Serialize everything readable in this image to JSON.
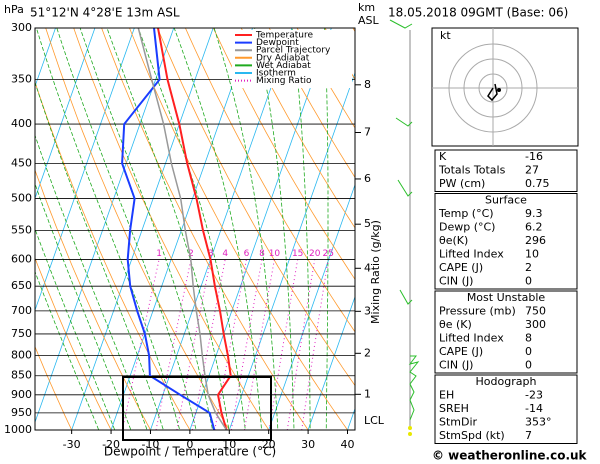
{
  "chart_data": {
    "type": "skew-t",
    "title_left": "51°12'N 4°28'E 13m ASL",
    "title_right": "18.05.2018 09GMT (Base: 06)",
    "y_label": "hPa",
    "y2_label": [
      "km",
      "ASL"
    ],
    "x_label": "Dewpoint / Temperature (°C)",
    "xlim": [
      -39.3,
      41.9
    ],
    "xticks": [
      -30,
      -20,
      -10,
      0,
      10,
      20,
      30,
      40
    ],
    "ylim": [
      1000,
      300
    ],
    "yticks": [
      300,
      350,
      400,
      450,
      500,
      550,
      600,
      650,
      700,
      750,
      800,
      850,
      900,
      950,
      1000
    ],
    "y2ticks": [
      1,
      2,
      3,
      4,
      5,
      6,
      7,
      8
    ],
    "annotation": "LCL",
    "levels": [
      1000,
      950,
      900,
      850,
      800,
      750,
      700,
      650,
      600,
      550,
      500,
      450,
      400,
      350,
      300
    ],
    "series": [
      {
        "name": "Temperature",
        "color": "#ff2020",
        "values": [
          9.3,
          6.5,
          4,
          5.5,
          3,
          0,
          -3,
          -6.5,
          -10,
          -14.5,
          -19,
          -24.5,
          -30,
          -37,
          -44
        ]
      },
      {
        "name": "Dewpoint",
        "color": "#1a3cff",
        "values": [
          6.2,
          3.5,
          -5.6,
          -15,
          -17,
          -20,
          -24,
          -28,
          -31,
          -33,
          -34.7,
          -41,
          -44,
          -39,
          -45
        ]
      },
      {
        "name": "Parcel Trajectory",
        "color": "#999999",
        "values": [
          9.3,
          5,
          1.5,
          -1,
          -3.5,
          -6,
          -9,
          -12,
          -15,
          -19,
          -23,
          -28.5,
          -34,
          -41,
          -49
        ]
      }
    ],
    "background_lines": [
      {
        "name": "Dry Adiabat",
        "color": "#ff9a2e"
      },
      {
        "name": "Wet Adiabat",
        "color": "#1faa1f"
      },
      {
        "name": "Isotherm",
        "color": "#2ab8f0"
      },
      {
        "name": "Mixing Ratio",
        "color": "#e020c0"
      }
    ],
    "mixing_ratios": [
      1,
      2,
      3,
      4,
      6,
      8,
      10,
      15,
      20,
      25
    ],
    "mixing_label": "Mixing Ratio (g/kg)",
    "hodograph_label": "kt",
    "indices": [
      {
        "rows": [
          [
            "K",
            "-16"
          ],
          [
            "Totals Totals",
            "27"
          ],
          [
            "PW (cm)",
            "0.75"
          ]
        ]
      },
      {
        "title": "Surface",
        "rows": [
          [
            "Temp (°C)",
            "9.3"
          ],
          [
            "Dewp (°C)",
            "6.2"
          ],
          [
            "θe(K)",
            "296"
          ],
          [
            "Lifted Index",
            "10"
          ],
          [
            "CAPE (J)",
            "2"
          ],
          [
            "CIN (J)",
            "0"
          ]
        ]
      },
      {
        "title": "Most Unstable",
        "rows": [
          [
            "Pressure (mb)",
            "750"
          ],
          [
            "θe (K)",
            "300"
          ],
          [
            "Lifted Index",
            "8"
          ],
          [
            "CAPE (J)",
            "0"
          ],
          [
            "CIN (J)",
            "0"
          ]
        ]
      },
      {
        "title": "Hodograph",
        "rows": [
          [
            "EH",
            "-23"
          ],
          [
            "SREH",
            "-14"
          ],
          [
            "StmDir",
            "353°"
          ],
          [
            "StmSpd (kt)",
            "7"
          ]
        ]
      }
    ],
    "footer": "© weatheronline.co.uk"
  }
}
